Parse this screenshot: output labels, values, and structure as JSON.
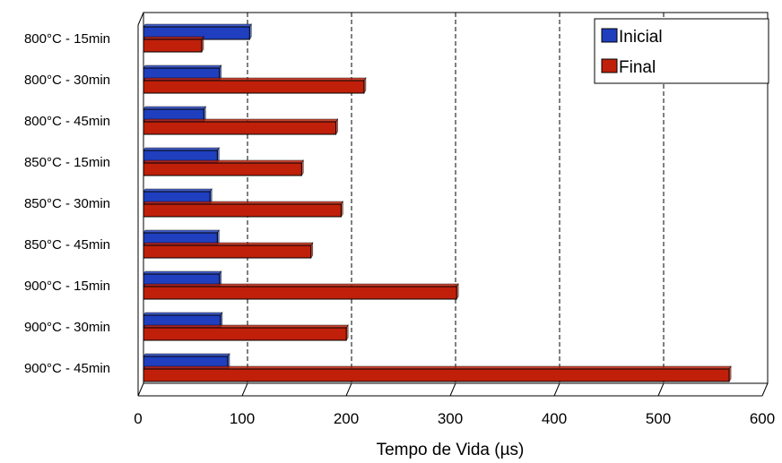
{
  "chart_data": {
    "type": "bar",
    "orientation": "horizontal",
    "categories": [
      "800°C - 15min",
      "800°C - 30min",
      "800°C - 45min",
      "850°C - 15min",
      "850°C - 30min",
      "850°C - 45min",
      "900°C - 15min",
      "900°C - 30min",
      "900°C - 45min"
    ],
    "series": [
      {
        "name": "Inicial",
        "color": "#1f3fbf",
        "values": [
          102,
          73,
          58,
          71,
          64,
          71,
          73,
          74,
          81
        ]
      },
      {
        "name": "Final",
        "color": "#c0200a",
        "values": [
          56,
          212,
          185,
          152,
          190,
          161,
          301,
          195,
          563
        ]
      }
    ],
    "xlabel": "Tempo de Vida (µs)",
    "ylabel": "",
    "xlim": [
      0,
      600
    ],
    "xticks": [
      "0",
      "100",
      "200",
      "300",
      "400",
      "500",
      "600"
    ],
    "grid": "vertical dashed",
    "legend": "top-right",
    "style": "3d-perspective"
  }
}
